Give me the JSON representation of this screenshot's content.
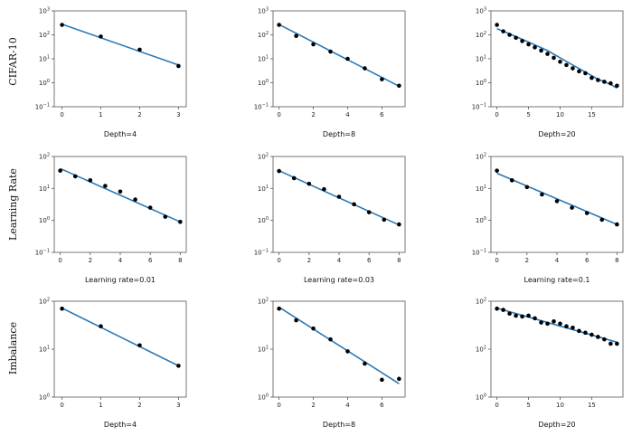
{
  "chart_data": [
    {
      "type": "scatter",
      "row": "CIFAR-10",
      "xlabel": "Depth=4",
      "xticks": [
        0,
        1,
        2,
        3
      ],
      "xlim": [
        -0.2,
        3.2
      ],
      "yscale": "log",
      "ylim": [
        0.1,
        1000
      ],
      "yticks": [
        0.1,
        1,
        10,
        100,
        1000
      ],
      "yticklabels": [
        [
          "10",
          "−1"
        ],
        [
          "10",
          "0"
        ],
        [
          "10",
          "1"
        ],
        [
          "10",
          "2"
        ],
        [
          "10",
          "3"
        ]
      ],
      "points": [
        [
          0,
          260
        ],
        [
          1,
          85
        ],
        [
          2,
          24
        ],
        [
          3,
          5
        ]
      ],
      "fit": [
        [
          0,
          280
        ],
        [
          3,
          5.5
        ]
      ]
    },
    {
      "type": "scatter",
      "xlabel": "Depth=8",
      "xticks": [
        0,
        2,
        4,
        6
      ],
      "xlim": [
        -0.35,
        7.35
      ],
      "yscale": "log",
      "ylim": [
        0.1,
        1000
      ],
      "yticks": [
        0.1,
        1,
        10,
        100,
        1000
      ],
      "yticklabels": [
        [
          "10",
          "−1"
        ],
        [
          "10",
          "0"
        ],
        [
          "10",
          "1"
        ],
        [
          "10",
          "2"
        ],
        [
          "10",
          "3"
        ]
      ],
      "points": [
        [
          0,
          260
        ],
        [
          1,
          90
        ],
        [
          2,
          40
        ],
        [
          3,
          20
        ],
        [
          4,
          10
        ],
        [
          5,
          4
        ],
        [
          6,
          1.4
        ],
        [
          7,
          0.75
        ]
      ],
      "fit": [
        [
          0,
          270
        ],
        [
          7,
          0.72
        ]
      ]
    },
    {
      "type": "scatter",
      "xlabel": "Depth=20",
      "xticks": [
        0,
        5,
        10,
        15
      ],
      "xlim": [
        -0.95,
        19.95
      ],
      "yscale": "log",
      "ylim": [
        0.1,
        1000
      ],
      "yticks": [
        0.1,
        1,
        10,
        100,
        1000
      ],
      "yticklabels": [
        [
          "10",
          "−1"
        ],
        [
          "10",
          "0"
        ],
        [
          "10",
          "1"
        ],
        [
          "10",
          "2"
        ],
        [
          "10",
          "3"
        ]
      ],
      "points": [
        [
          0,
          260
        ],
        [
          1,
          140
        ],
        [
          2,
          100
        ],
        [
          3,
          75
        ],
        [
          4,
          55
        ],
        [
          5,
          40
        ],
        [
          6,
          30
        ],
        [
          7,
          22
        ],
        [
          8,
          16
        ],
        [
          9,
          11
        ],
        [
          10,
          7.5
        ],
        [
          11,
          5.5
        ],
        [
          12,
          4
        ],
        [
          13,
          3
        ],
        [
          14,
          2.5
        ],
        [
          15,
          1.6
        ],
        [
          16,
          1.3
        ],
        [
          17,
          1.1
        ],
        [
          18,
          0.95
        ],
        [
          19,
          0.75
        ]
      ],
      "fit": [
        [
          0,
          180
        ],
        [
          2,
          110
        ],
        [
          4,
          65
        ],
        [
          6,
          38
        ],
        [
          8,
          22
        ],
        [
          10,
          11
        ],
        [
          12,
          5.5
        ],
        [
          14,
          2.8
        ],
        [
          16,
          1.4
        ],
        [
          18,
          0.85
        ],
        [
          19,
          0.6
        ]
      ]
    },
    {
      "type": "scatter",
      "row": "Learning Rate",
      "xlabel": "Learning rate=0.01",
      "xticks": [
        0,
        2,
        4,
        6,
        8
      ],
      "xlim": [
        -0.4,
        8.4
      ],
      "yscale": "log",
      "ylim": [
        0.1,
        100
      ],
      "yticks": [
        0.1,
        1,
        10,
        100
      ],
      "yticklabels": [
        [
          "10",
          "−1"
        ],
        [
          "10",
          "0"
        ],
        [
          "10",
          "1"
        ],
        [
          "10",
          "2"
        ]
      ],
      "points": [
        [
          0,
          36
        ],
        [
          1,
          24
        ],
        [
          2,
          18
        ],
        [
          3,
          12
        ],
        [
          4,
          8
        ],
        [
          5,
          4.5
        ],
        [
          6,
          2.5
        ],
        [
          7,
          1.3
        ],
        [
          8,
          0.9
        ]
      ],
      "fit": [
        [
          0,
          42
        ],
        [
          8,
          0.9
        ]
      ]
    },
    {
      "type": "scatter",
      "xlabel": "Learning rate=0.03",
      "xticks": [
        0,
        2,
        4,
        6,
        8
      ],
      "xlim": [
        -0.4,
        8.4
      ],
      "yscale": "log",
      "ylim": [
        0.1,
        100
      ],
      "yticks": [
        0.1,
        1,
        10,
        100
      ],
      "yticklabels": [
        [
          "10",
          "−1"
        ],
        [
          "10",
          "0"
        ],
        [
          "10",
          "1"
        ],
        [
          "10",
          "2"
        ]
      ],
      "points": [
        [
          0,
          35
        ],
        [
          1,
          21
        ],
        [
          2,
          14
        ],
        [
          3,
          9.5
        ],
        [
          4,
          5.5
        ],
        [
          5,
          3.2
        ],
        [
          6,
          1.8
        ],
        [
          7,
          1.05
        ],
        [
          8,
          0.75
        ]
      ],
      "fit": [
        [
          0,
          36
        ],
        [
          8,
          0.72
        ]
      ]
    },
    {
      "type": "scatter",
      "xlabel": "Learning rate=0.1",
      "xticks": [
        0,
        2,
        4,
        6,
        8
      ],
      "xlim": [
        -0.4,
        8.4
      ],
      "yscale": "log",
      "ylim": [
        0.1,
        100
      ],
      "yticks": [
        0.1,
        1,
        10,
        100
      ],
      "yticklabels": [
        [
          "10",
          "−1"
        ],
        [
          "10",
          "0"
        ],
        [
          "10",
          "1"
        ],
        [
          "10",
          "2"
        ]
      ],
      "points": [
        [
          0,
          36
        ],
        [
          1,
          18
        ],
        [
          2,
          11
        ],
        [
          3,
          6.5
        ],
        [
          4,
          4
        ],
        [
          5,
          2.5
        ],
        [
          6,
          1.7
        ],
        [
          7,
          1.05
        ],
        [
          8,
          0.75
        ]
      ],
      "fit": [
        [
          0,
          30
        ],
        [
          8,
          0.75
        ]
      ]
    },
    {
      "type": "scatter",
      "row": "Imbalance",
      "xlabel": "Depth=4",
      "xticks": [
        0,
        1,
        2,
        3
      ],
      "xlim": [
        -0.2,
        3.2
      ],
      "yscale": "log",
      "ylim": [
        1,
        100
      ],
      "yticks": [
        1,
        10,
        100
      ],
      "yticklabels": [
        [
          "10",
          "0"
        ],
        [
          "10",
          "1"
        ],
        [
          "10",
          "2"
        ]
      ],
      "points": [
        [
          0,
          70
        ],
        [
          1,
          30
        ],
        [
          2,
          12
        ],
        [
          3,
          4.5
        ]
      ],
      "fit": [
        [
          0,
          72
        ],
        [
          3,
          4.5
        ]
      ]
    },
    {
      "type": "scatter",
      "xlabel": "Depth=8",
      "xticks": [
        0,
        2,
        4,
        6
      ],
      "xlim": [
        -0.35,
        7.35
      ],
      "yscale": "log",
      "ylim": [
        1,
        100
      ],
      "yticks": [
        1,
        10,
        100
      ],
      "yticklabels": [
        [
          "10",
          "0"
        ],
        [
          "10",
          "1"
        ],
        [
          "10",
          "2"
        ]
      ],
      "points": [
        [
          0,
          70
        ],
        [
          1,
          40
        ],
        [
          2,
          27
        ],
        [
          3,
          16
        ],
        [
          4,
          9
        ],
        [
          5,
          5
        ],
        [
          6,
          2.3
        ],
        [
          7,
          2.4
        ]
      ],
      "fit": [
        [
          0,
          75
        ],
        [
          7,
          1.9
        ]
      ]
    },
    {
      "type": "scatter",
      "xlabel": "Depth=20",
      "xticks": [
        0,
        5,
        10,
        15
      ],
      "xlim": [
        -0.95,
        19.95
      ],
      "yscale": "log",
      "ylim": [
        1,
        100
      ],
      "yticks": [
        1,
        10,
        100
      ],
      "yticklabels": [
        [
          "10",
          "0"
        ],
        [
          "10",
          "1"
        ],
        [
          "10",
          "2"
        ]
      ],
      "points": [
        [
          0,
          70
        ],
        [
          1,
          66
        ],
        [
          2,
          55
        ],
        [
          3,
          50
        ],
        [
          4,
          48
        ],
        [
          5,
          50
        ],
        [
          6,
          44
        ],
        [
          7,
          36
        ],
        [
          8,
          34
        ],
        [
          9,
          38
        ],
        [
          10,
          34
        ],
        [
          11,
          30
        ],
        [
          12,
          28
        ],
        [
          13,
          24
        ],
        [
          14,
          22
        ],
        [
          15,
          20
        ],
        [
          16,
          18
        ],
        [
          17,
          16
        ],
        [
          18,
          13
        ],
        [
          19,
          13
        ]
      ],
      "fit": [
        [
          0,
          72
        ],
        [
          19,
          14
        ]
      ]
    }
  ]
}
